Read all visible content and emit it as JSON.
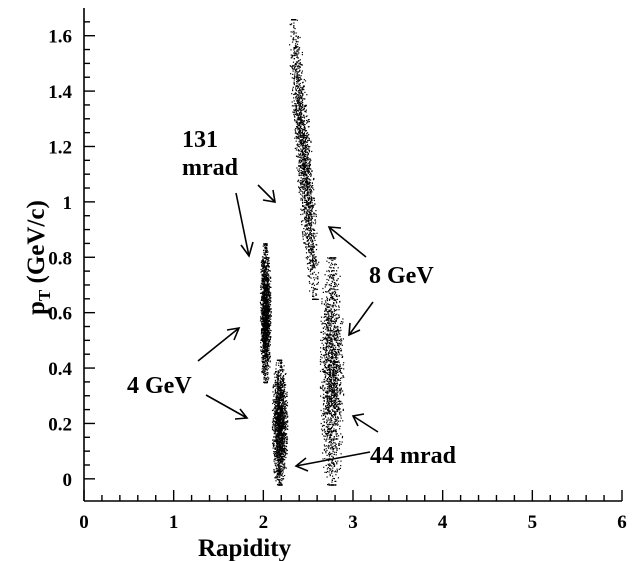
{
  "chart_data": {
    "type": "scatter",
    "xlabel": "Rapidity",
    "ylabel_main": "p",
    "ylabel_sub": "T",
    "ylabel_rest": " (GeV/c)",
    "xlim": [
      0,
      6
    ],
    "ylim": [
      -0.08,
      1.7
    ],
    "xticks": [
      "0",
      "1",
      "2",
      "3",
      "4",
      "5",
      "6"
    ],
    "xtick_values": [
      0,
      1,
      2,
      3,
      4,
      5,
      6
    ],
    "xminor_step": 0.2,
    "yticks": [
      "0",
      "0.2",
      "0.4",
      "0.6",
      "0.8",
      "1",
      "1.2",
      "1.4",
      "1.6"
    ],
    "ytick_values": [
      0,
      0.2,
      0.4,
      0.6,
      0.8,
      1.0,
      1.2,
      1.4,
      1.6
    ],
    "yminor_step": 0.05,
    "grid": false,
    "clusters": [
      {
        "setting": "4 GeV, 131 mrad",
        "y_center": 2.02,
        "pt_min": 0.35,
        "pt_max": 0.85,
        "y_low": 1.97,
        "y_high": 2.09
      },
      {
        "setting": "8 GeV, 131 mrad",
        "y_center": 2.45,
        "pt_min": 0.65,
        "pt_max": 1.66,
        "y_low": 2.38,
        "y_high": 2.56
      },
      {
        "setting": "4 GeV, 44 mrad",
        "y_center": 2.18,
        "pt_min": -0.02,
        "pt_max": 0.43,
        "y_low": 2.1,
        "y_high": 2.27
      },
      {
        "setting": "8 GeV, 44 mrad",
        "y_center": 2.76,
        "pt_min": -0.02,
        "pt_max": 0.8,
        "y_low": 2.62,
        "y_high": 2.88
      }
    ],
    "annotations": [
      {
        "id": "mrad131_line1",
        "text": "131"
      },
      {
        "id": "mrad131_line2",
        "text": "mrad"
      },
      {
        "id": "gev8",
        "text": "8 GeV"
      },
      {
        "id": "gev4",
        "text": "4 GeV"
      },
      {
        "id": "mrad44",
        "text": "44 mrad"
      }
    ]
  }
}
